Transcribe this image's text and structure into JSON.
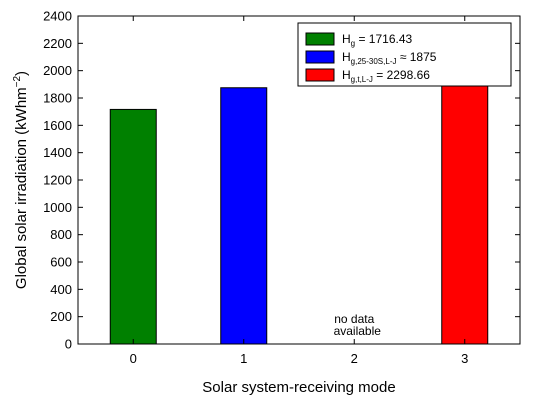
{
  "chart_data": {
    "type": "bar",
    "categories": [
      "0",
      "1",
      "2",
      "3"
    ],
    "values": [
      1716.43,
      1875,
      null,
      2298.66
    ],
    "colors": [
      "#008000",
      "#0000ff",
      "#ffffff",
      "#ff0000"
    ],
    "xlabel": "Solar system-receiving mode",
    "ylabel": "Global solar irradiation (kWhm",
    "ylabel_sup": "−2",
    "ylabel_close": ")",
    "ylim": [
      0,
      2400
    ],
    "yticks": [
      0,
      200,
      400,
      600,
      800,
      1000,
      1200,
      1400,
      1600,
      1800,
      2000,
      2200,
      2400
    ],
    "grid": false,
    "legend_position": "top-right",
    "legend": [
      {
        "base": "H",
        "sub": "g",
        "rest": " =  1716.43",
        "color": "#008000"
      },
      {
        "base": "H",
        "sub": "g,25-30S,L-J",
        "rest": " ≈ 1875",
        "color": "#0000ff"
      },
      {
        "base": "H",
        "sub": "g,t,L-J",
        "rest": " = 2298.66",
        "color": "#ff0000"
      }
    ],
    "annotations": [
      "no data",
      "available"
    ]
  }
}
